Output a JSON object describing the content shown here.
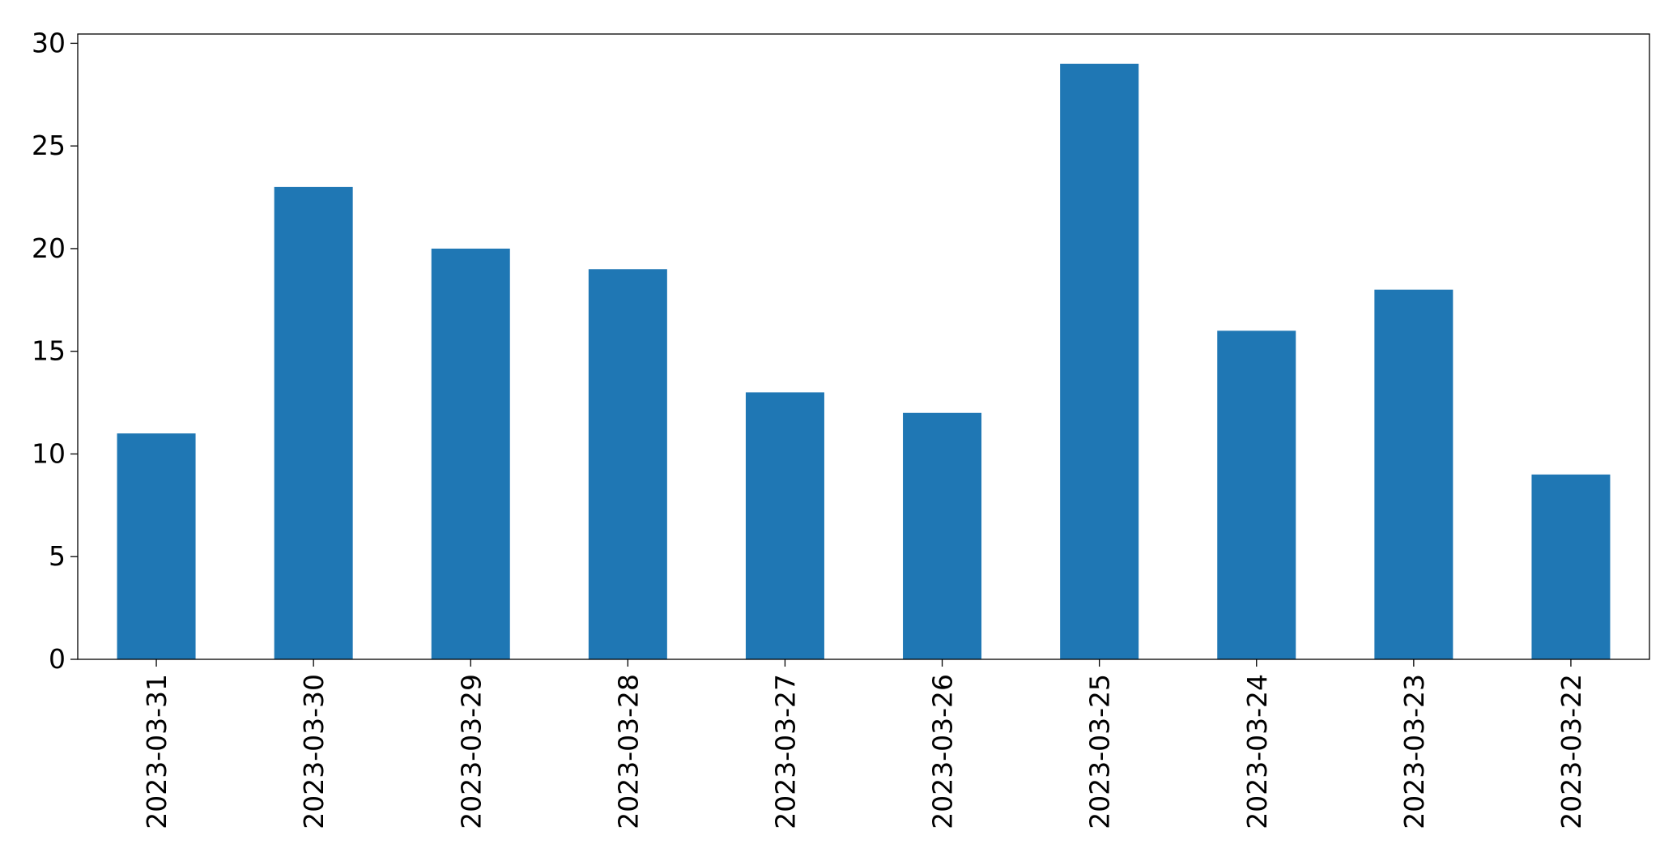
{
  "chart_data": {
    "type": "bar",
    "categories": [
      "2023-03-31",
      "2023-03-30",
      "2023-03-29",
      "2023-03-28",
      "2023-03-27",
      "2023-03-26",
      "2023-03-25",
      "2023-03-24",
      "2023-03-23",
      "2023-03-22"
    ],
    "values": [
      11,
      23,
      20,
      19,
      13,
      12,
      29,
      16,
      18,
      9
    ],
    "title": "",
    "xlabel": "",
    "ylabel": "",
    "ylim": [
      0,
      30.45
    ],
    "yticks": [
      0,
      5,
      10,
      15,
      20,
      25,
      30
    ],
    "bar_color": "#1f77b4",
    "grid": false,
    "legend": "none"
  }
}
